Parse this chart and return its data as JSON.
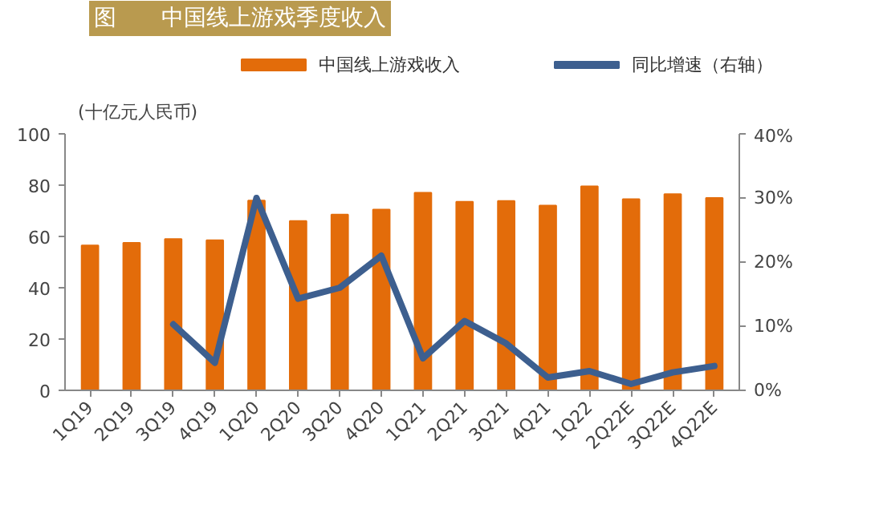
{
  "chart_data": {
    "type": "bar",
    "title": "图　　中国线上游戏季度收入",
    "ylabel": "(十亿元人民币)",
    "categories": [
      "1Q19",
      "2Q19",
      "3Q19",
      "4Q19",
      "1Q20",
      "2Q20",
      "3Q20",
      "4Q20",
      "1Q21",
      "2Q21",
      "3Q21",
      "4Q21",
      "1Q22",
      "2Q22E",
      "3Q22E",
      "4Q22E"
    ],
    "series": [
      {
        "name": "中国线上游戏收入",
        "color": "#e36c0a",
        "values": [
          56.5,
          57.5,
          59,
          58.5,
          74,
          66,
          68.5,
          70.5,
          77,
          73.5,
          73.8,
          72,
          79.5,
          74.5,
          76.5,
          75
        ]
      },
      {
        "name": "同比增速（右轴）",
        "type": "line",
        "axis": "y2",
        "color": "#3d5f8f",
        "line_style": "solid",
        "values": [
          null,
          null,
          10.3,
          4.3,
          30,
          14.3,
          16,
          21,
          5,
          10.8,
          7.3,
          2,
          3,
          1,
          2.8,
          3.8
        ]
      }
    ],
    "ylim": [
      0,
      100
    ],
    "yticks": [
      0,
      20,
      40,
      60,
      80,
      100
    ],
    "y2lim": [
      0,
      40
    ],
    "y2ticks": [
      {
        "value": 0,
        "label": "0%"
      },
      {
        "value": 10,
        "label": "10%"
      },
      {
        "value": 20,
        "label": "20%"
      },
      {
        "value": 30,
        "label": "30%"
      },
      {
        "value": 40,
        "label": "40%"
      }
    ],
    "grid": false,
    "legend": "top"
  }
}
